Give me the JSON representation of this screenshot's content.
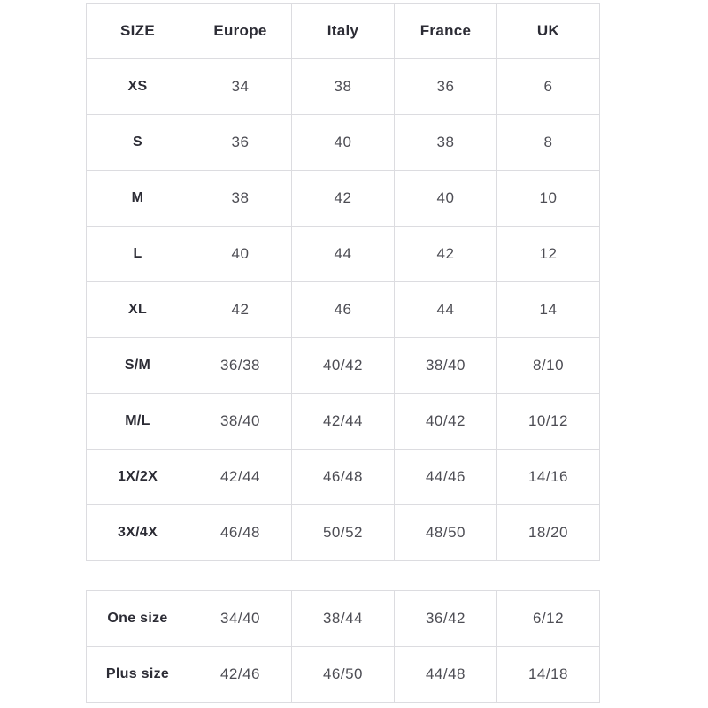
{
  "colors": {
    "background": "#ffffff",
    "border": "#dcdce0",
    "header_text": "#2c2c35",
    "cell_text": "#4d4d54"
  },
  "size_table": {
    "headers": [
      "SIZE",
      "Europe",
      "Italy",
      "France",
      "UK"
    ],
    "rows": [
      {
        "label": "XS",
        "values": [
          "34",
          "38",
          "36",
          "6"
        ]
      },
      {
        "label": "S",
        "values": [
          "36",
          "40",
          "38",
          "8"
        ]
      },
      {
        "label": "M",
        "values": [
          "38",
          "42",
          "40",
          "10"
        ]
      },
      {
        "label": "L",
        "values": [
          "40",
          "44",
          "42",
          "12"
        ]
      },
      {
        "label": "XL",
        "values": [
          "42",
          "46",
          "44",
          "14"
        ]
      },
      {
        "label": "S/M",
        "values": [
          "36/38",
          "40/42",
          "38/40",
          "8/10"
        ]
      },
      {
        "label": "M/L",
        "values": [
          "38/40",
          "42/44",
          "40/42",
          "10/12"
        ]
      },
      {
        "label": "1X/2X",
        "values": [
          "42/44",
          "46/48",
          "44/46",
          "14/16"
        ]
      },
      {
        "label": "3X/4X",
        "values": [
          "46/48",
          "50/52",
          "48/50",
          "18/20"
        ]
      }
    ]
  },
  "special_table": {
    "rows": [
      {
        "label": "One size",
        "values": [
          "34/40",
          "38/44",
          "36/42",
          "6/12"
        ]
      },
      {
        "label": "Plus size",
        "values": [
          "42/46",
          "46/50",
          "44/48",
          "14/18"
        ]
      }
    ]
  }
}
